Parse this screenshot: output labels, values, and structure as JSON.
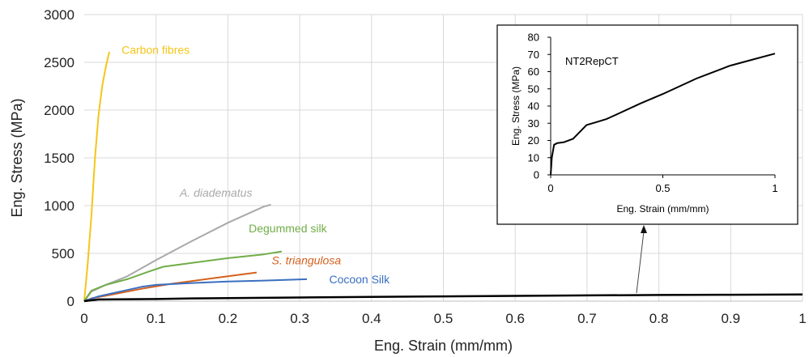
{
  "chart_data": [
    {
      "type": "line",
      "title": "",
      "xlabel": "Eng. Strain (mm/mm)",
      "ylabel": "Eng. Stress (MPa)",
      "xlim": [
        0,
        1
      ],
      "ylim": [
        0,
        3000
      ],
      "x_ticks": [
        "0",
        "0.1",
        "0.2",
        "0.3",
        "0.4",
        "0.5",
        "0.6",
        "0.7",
        "0.8",
        "0.9",
        "1"
      ],
      "y_ticks": [
        "0",
        "500",
        "1000",
        "1500",
        "2000",
        "2500",
        "3000"
      ],
      "grid": true,
      "series": [
        {
          "name": "Carbon fibres",
          "italic": false,
          "color": "#f5c518",
          "points": [
            [
              0,
              0
            ],
            [
              0.005,
              400
            ],
            [
              0.01,
              900
            ],
            [
              0.015,
              1500
            ],
            [
              0.02,
              1950
            ],
            [
              0.025,
              2250
            ],
            [
              0.03,
              2450
            ],
            [
              0.035,
              2610
            ]
          ]
        },
        {
          "name": "A. diadematus",
          "italic": true,
          "color": "#a9a9a9",
          "points": [
            [
              0,
              0
            ],
            [
              0.01,
              100
            ],
            [
              0.03,
              170
            ],
            [
              0.06,
              260
            ],
            [
              0.1,
              430
            ],
            [
              0.15,
              630
            ],
            [
              0.2,
              820
            ],
            [
              0.25,
              990
            ],
            [
              0.26,
              1010
            ]
          ]
        },
        {
          "name": "Degummed silk",
          "italic": false,
          "color": "#70ad47",
          "points": [
            [
              0,
              0
            ],
            [
              0.01,
              110
            ],
            [
              0.03,
              170
            ],
            [
              0.06,
              230
            ],
            [
              0.09,
              310
            ],
            [
              0.11,
              360
            ],
            [
              0.15,
              400
            ],
            [
              0.2,
              450
            ],
            [
              0.25,
              490
            ],
            [
              0.275,
              520
            ]
          ]
        },
        {
          "name": "S. triangulosa",
          "italic": true,
          "color": "#d4601e",
          "points": [
            [
              0,
              0
            ],
            [
              0.01,
              30
            ],
            [
              0.04,
              70
            ],
            [
              0.08,
              130
            ],
            [
              0.12,
              180
            ],
            [
              0.16,
              220
            ],
            [
              0.2,
              260
            ],
            [
              0.24,
              300
            ]
          ]
        },
        {
          "name": "Cocoon Silk",
          "italic": false,
          "color": "#3a6fc0",
          "points": [
            [
              0,
              0
            ],
            [
              0.02,
              50
            ],
            [
              0.05,
              100
            ],
            [
              0.08,
              150
            ],
            [
              0.1,
              170
            ],
            [
              0.15,
              190
            ],
            [
              0.2,
              205
            ],
            [
              0.25,
              215
            ],
            [
              0.31,
              230
            ]
          ]
        },
        {
          "name": "",
          "italic": false,
          "color": "#000000",
          "points": [
            [
              0,
              0
            ],
            [
              0.02,
              18
            ],
            [
              0.1,
              22
            ],
            [
              0.15,
              29
            ],
            [
              0.2,
              32
            ],
            [
              0.3,
              38
            ],
            [
              0.4,
              44
            ],
            [
              0.5,
              50
            ],
            [
              0.6,
              55
            ],
            [
              0.7,
              60
            ],
            [
              0.8,
              64
            ],
            [
              0.9,
              67
            ],
            [
              1.0,
              70.5
            ]
          ]
        }
      ]
    },
    {
      "type": "line",
      "title": "NT2RepCT",
      "xlabel": "Eng. Strain (mm/mm)",
      "ylabel": "Eng. Stress (MPa)",
      "xlim": [
        0,
        1
      ],
      "ylim": [
        0,
        80
      ],
      "x_ticks": [
        "0",
        "0.5",
        "1"
      ],
      "y_ticks": [
        "0",
        "10",
        "20",
        "30",
        "40",
        "50",
        "60",
        "70",
        "80"
      ],
      "grid": false,
      "series": [
        {
          "color": "#000000",
          "points": [
            [
              0,
              0
            ],
            [
              0.005,
              10
            ],
            [
              0.015,
              17.5
            ],
            [
              0.03,
              18.5
            ],
            [
              0.06,
              19
            ],
            [
              0.1,
              21
            ],
            [
              0.13,
              25
            ],
            [
              0.16,
              29
            ],
            [
              0.2,
              30.5
            ],
            [
              0.25,
              32.5
            ],
            [
              0.3,
              35.5
            ],
            [
              0.4,
              41.5
            ],
            [
              0.5,
              47
            ],
            [
              0.6,
              53
            ],
            [
              0.65,
              56
            ],
            [
              0.7,
              58.5
            ],
            [
              0.8,
              63.5
            ],
            [
              0.9,
              67
            ],
            [
              1.0,
              70.5
            ]
          ]
        }
      ]
    }
  ]
}
